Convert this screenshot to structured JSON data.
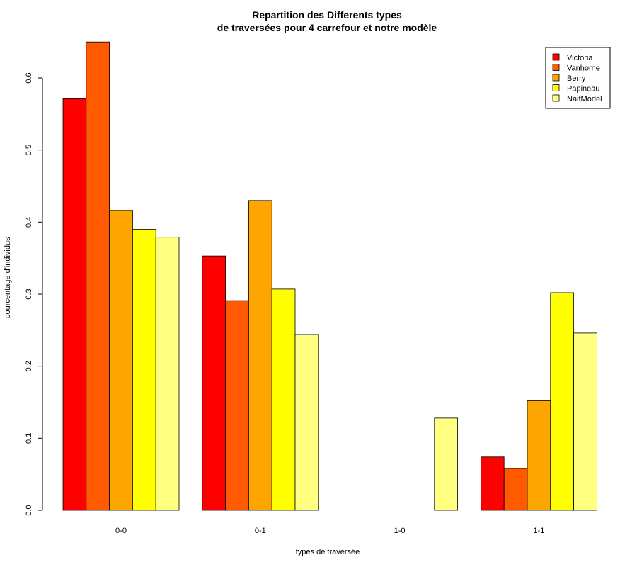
{
  "chart_data": {
    "type": "bar",
    "title_lines": [
      "Repartition des Differents types",
      "de traversées pour 4 carrefour et notre modèle"
    ],
    "xlabel": "types de traversée",
    "ylabel": "pourcentage d'individus",
    "categories": [
      "0-0",
      "0-1",
      "1-0",
      "1-1"
    ],
    "series": [
      {
        "name": "Victoria",
        "color": "#ff0000",
        "values": [
          0.572,
          0.353,
          0.0,
          0.074
        ]
      },
      {
        "name": "Vanhorne",
        "color": "#ff5a00",
        "values": [
          0.65,
          0.291,
          0.0,
          0.058
        ]
      },
      {
        "name": "Berry",
        "color": "#ffa500",
        "values": [
          0.416,
          0.43,
          0.0,
          0.152
        ]
      },
      {
        "name": "Papineau",
        "color": "#ffff00",
        "values": [
          0.39,
          0.307,
          0.0,
          0.302
        ]
      },
      {
        "name": "NaifModel",
        "color": "#ffff80",
        "values": [
          0.379,
          0.244,
          0.128,
          0.246
        ]
      }
    ],
    "yticks": [
      "0.0",
      "0.1",
      "0.2",
      "0.3",
      "0.4",
      "0.5",
      "0.6"
    ],
    "ylim": [
      0,
      0.6
    ],
    "grid": false,
    "legend_position": "top-right"
  }
}
